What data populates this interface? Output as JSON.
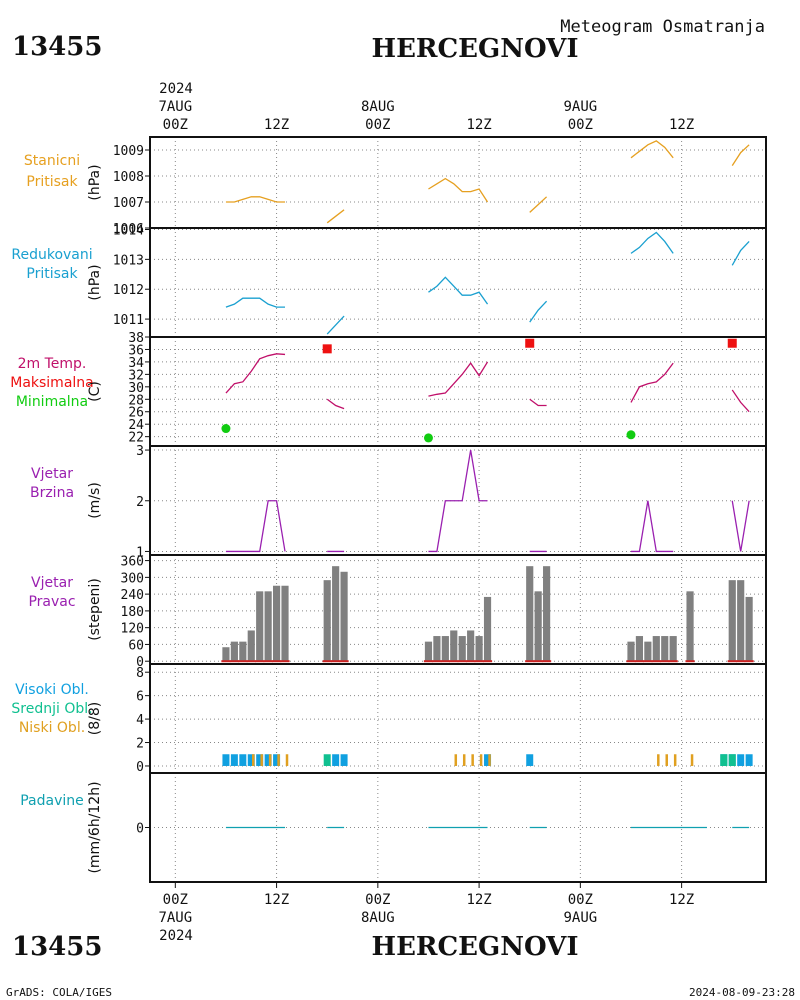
{
  "header": {
    "station_id": "13455",
    "station_name": "HERCEGNOVI",
    "subtitle": "Meteogram Osmatranja"
  },
  "footer": {
    "station_id": "13455",
    "station_name": "HERCEGNOVI",
    "credit": "GrADS: COLA/IGES",
    "timestamp": "2024-08-09-23:28"
  },
  "time_axis": {
    "year": "2024",
    "ticks": [
      {
        "h": 0,
        "label": "00Z",
        "date": "7AUG"
      },
      {
        "h": 12,
        "label": "12Z",
        "date": ""
      },
      {
        "h": 24,
        "label": "00Z",
        "date": "8AUG"
      },
      {
        "h": 36,
        "label": "12Z",
        "date": ""
      },
      {
        "h": 48,
        "label": "00Z",
        "date": "9AUG"
      },
      {
        "h": 60,
        "label": "12Z",
        "date": ""
      }
    ],
    "range_hours": [
      -3,
      70
    ]
  },
  "colors": {
    "pressure_station": "#e6a020",
    "pressure_reduced": "#1aa0d0",
    "temp": "#c0106a",
    "tmax": "#ee1111",
    "tmin": "#11cc11",
    "wind": "#9a20b0",
    "bars": "#808080",
    "bar_base": "#cc2222",
    "high_cloud": "#10a0e0",
    "mid_cloud": "#10c090",
    "low_cloud": "#e0a020",
    "precip": "#10a0b0"
  },
  "chart_data": [
    {
      "type": "line",
      "id": "station_pressure",
      "labels": [
        "Stanicni",
        "Pritisak"
      ],
      "ylabel": "(hPa)",
      "ylim": [
        1006,
        1009.5
      ],
      "yticks": [
        1006,
        1007,
        1008,
        1009
      ],
      "segments": [
        {
          "x": [
            6,
            7,
            8,
            9,
            10,
            11,
            12,
            13
          ],
          "y": [
            1007.0,
            1007.0,
            1007.1,
            1007.2,
            1007.2,
            1007.1,
            1007.0,
            1007.0
          ]
        },
        {
          "x": [
            18,
            19,
            20
          ],
          "y": [
            1006.2,
            1006.45,
            1006.7
          ]
        },
        {
          "x": [
            30,
            31,
            32,
            33,
            34,
            35,
            36,
            37
          ],
          "y": [
            1007.5,
            1007.7,
            1007.9,
            1007.7,
            1007.4,
            1007.4,
            1007.5,
            1007.0
          ]
        },
        {
          "x": [
            42,
            43,
            44
          ],
          "y": [
            1006.6,
            1006.9,
            1007.2
          ]
        },
        {
          "x": [
            54,
            55,
            56,
            57,
            58,
            59
          ],
          "y": [
            1008.7,
            1008.95,
            1009.2,
            1009.35,
            1009.1,
            1008.7
          ]
        },
        {
          "x": [
            66,
            67,
            68
          ],
          "y": [
            1008.4,
            1008.9,
            1009.2
          ]
        }
      ]
    },
    {
      "type": "line",
      "id": "reduced_pressure",
      "labels": [
        "Redukovani",
        "Pritisak"
      ],
      "ylabel": "(hPa)",
      "ylim": [
        1010.4,
        1014.05
      ],
      "yticks": [
        1011,
        1012,
        1013,
        1014
      ],
      "segments": [
        {
          "x": [
            6,
            7,
            8,
            9,
            10,
            11,
            12,
            13
          ],
          "y": [
            1011.4,
            1011.5,
            1011.7,
            1011.7,
            1011.7,
            1011.5,
            1011.4,
            1011.4
          ]
        },
        {
          "x": [
            18,
            19,
            20
          ],
          "y": [
            1010.5,
            1010.8,
            1011.1
          ]
        },
        {
          "x": [
            30,
            31,
            32,
            33,
            34,
            35,
            36,
            37
          ],
          "y": [
            1011.9,
            1012.1,
            1012.4,
            1012.1,
            1011.8,
            1011.8,
            1011.9,
            1011.5
          ]
        },
        {
          "x": [
            42,
            43,
            44
          ],
          "y": [
            1010.9,
            1011.3,
            1011.6
          ]
        },
        {
          "x": [
            54,
            55,
            56,
            57,
            58,
            59
          ],
          "y": [
            1013.2,
            1013.4,
            1013.7,
            1013.9,
            1013.6,
            1013.2
          ]
        },
        {
          "x": [
            66,
            67,
            68
          ],
          "y": [
            1012.8,
            1013.3,
            1013.6
          ]
        }
      ]
    },
    {
      "type": "line",
      "id": "temperature",
      "labels": [
        "2m Temp.",
        "Maksimalna",
        "Minimalna"
      ],
      "ylabel": "(C)",
      "ylim": [
        20.5,
        38
      ],
      "yticks": [
        22,
        24,
        26,
        28,
        30,
        32,
        34,
        36,
        38
      ],
      "segments": [
        {
          "x": [
            6,
            7,
            8,
            9,
            10,
            11,
            12,
            13
          ],
          "y": [
            29.0,
            30.5,
            30.8,
            32.5,
            34.5,
            35.0,
            35.3,
            35.2
          ]
        },
        {
          "x": [
            18,
            19,
            20
          ],
          "y": [
            28.0,
            27.0,
            26.5
          ]
        },
        {
          "x": [
            30,
            31,
            32,
            33,
            34,
            35,
            36,
            37
          ],
          "y": [
            28.5,
            28.8,
            29.0,
            30.5,
            32.0,
            33.8,
            31.8,
            34.0
          ]
        },
        {
          "x": [
            42,
            43,
            44
          ],
          "y": [
            28.0,
            27.0,
            27.0
          ]
        },
        {
          "x": [
            54,
            55,
            56,
            57,
            58,
            59
          ],
          "y": [
            27.5,
            30.0,
            30.5,
            30.8,
            32.0,
            33.8
          ]
        },
        {
          "x": [
            66,
            67,
            68
          ],
          "y": [
            29.5,
            27.5,
            26.0
          ]
        }
      ],
      "max_points": [
        {
          "x": 18,
          "y": 36.1
        },
        {
          "x": 42,
          "y": 37.0
        },
        {
          "x": 66,
          "y": 37.0
        }
      ],
      "min_points": [
        {
          "x": 6,
          "y": 23.3
        },
        {
          "x": 30,
          "y": 21.8
        },
        {
          "x": 54,
          "y": 22.3
        }
      ]
    },
    {
      "type": "line",
      "id": "wind_speed",
      "labels": [
        "Vjetar",
        "Brzina"
      ],
      "ylabel": "(m/s)",
      "ylim": [
        0.93,
        3.08
      ],
      "yticks": [
        1,
        2,
        3
      ],
      "segments": [
        {
          "x": [
            6,
            7,
            8,
            9,
            10,
            11,
            12,
            13
          ],
          "y": [
            1,
            1,
            1,
            1,
            1,
            2,
            2,
            1
          ]
        },
        {
          "x": [
            18,
            19,
            20
          ],
          "y": [
            1,
            1,
            1
          ]
        },
        {
          "x": [
            30,
            31,
            32,
            33,
            34,
            35,
            36,
            37
          ],
          "y": [
            1,
            1,
            2,
            2,
            2,
            3,
            2,
            2
          ]
        },
        {
          "x": [
            42,
            43,
            44
          ],
          "y": [
            1,
            1,
            1
          ]
        },
        {
          "x": [
            54,
            55,
            56,
            57,
            58,
            59
          ],
          "y": [
            1,
            1,
            2,
            1,
            1,
            1
          ]
        },
        {
          "x": [
            66,
            67,
            68
          ],
          "y": [
            2,
            1,
            2
          ]
        }
      ]
    },
    {
      "type": "bar",
      "id": "wind_direction",
      "labels": [
        "Vjetar",
        "Pravac"
      ],
      "ylabel": "(stepeni)",
      "ylim": [
        -10,
        380
      ],
      "yticks": [
        0,
        60,
        120,
        180,
        240,
        300,
        360
      ],
      "x": [
        6,
        7,
        8,
        9,
        10,
        11,
        12,
        13,
        18,
        19,
        20,
        30,
        31,
        32,
        33,
        34,
        35,
        36,
        37,
        42,
        43,
        44,
        54,
        55,
        56,
        57,
        58,
        59,
        61,
        66,
        67,
        68
      ],
      "values": [
        50,
        70,
        70,
        110,
        250,
        250,
        270,
        270,
        290,
        340,
        320,
        70,
        90,
        90,
        110,
        90,
        110,
        90,
        230,
        340,
        250,
        340,
        70,
        90,
        70,
        90,
        90,
        90,
        250,
        290,
        290,
        230
      ]
    },
    {
      "type": "bar",
      "id": "clouds",
      "labels": [
        "Visoki Obl.",
        "Srednji Obl.",
        "Niski Obl."
      ],
      "ylabel": "(8/8)",
      "ylim": [
        -0.6,
        8.7
      ],
      "yticks": [
        0,
        2,
        4,
        6,
        8
      ],
      "high_x": [
        6,
        7,
        8,
        9,
        10,
        11,
        12,
        19,
        20,
        37,
        42,
        65,
        66,
        67,
        68
      ],
      "high_values": [
        1,
        1,
        1,
        1,
        1,
        1,
        1,
        1,
        1,
        1,
        1,
        1,
        1,
        1,
        1
      ],
      "mid_x": [
        18,
        65,
        66
      ],
      "mid_values": [
        1,
        1,
        1
      ],
      "low_x": [
        9,
        10,
        11,
        12,
        13,
        33,
        34,
        35,
        36,
        37,
        57,
        58,
        59,
        61
      ],
      "low_values": [
        1,
        1,
        1,
        1,
        1,
        1,
        1,
        1,
        1,
        1,
        1,
        1,
        1,
        1
      ]
    },
    {
      "type": "line",
      "id": "precipitation",
      "labels": [
        "Padavine"
      ],
      "ylabel": "(mm/6h/12h)",
      "ylim": [
        -1,
        1
      ],
      "yticks": [
        0
      ],
      "segments": [
        {
          "x": [
            6,
            13
          ],
          "y": [
            0,
            0
          ]
        },
        {
          "x": [
            18,
            20
          ],
          "y": [
            0,
            0
          ]
        },
        {
          "x": [
            30,
            37
          ],
          "y": [
            0,
            0
          ]
        },
        {
          "x": [
            42,
            44
          ],
          "y": [
            0,
            0
          ]
        },
        {
          "x": [
            54,
            63
          ],
          "y": [
            0,
            0
          ]
        },
        {
          "x": [
            66,
            68
          ],
          "y": [
            0,
            0
          ]
        }
      ]
    }
  ]
}
